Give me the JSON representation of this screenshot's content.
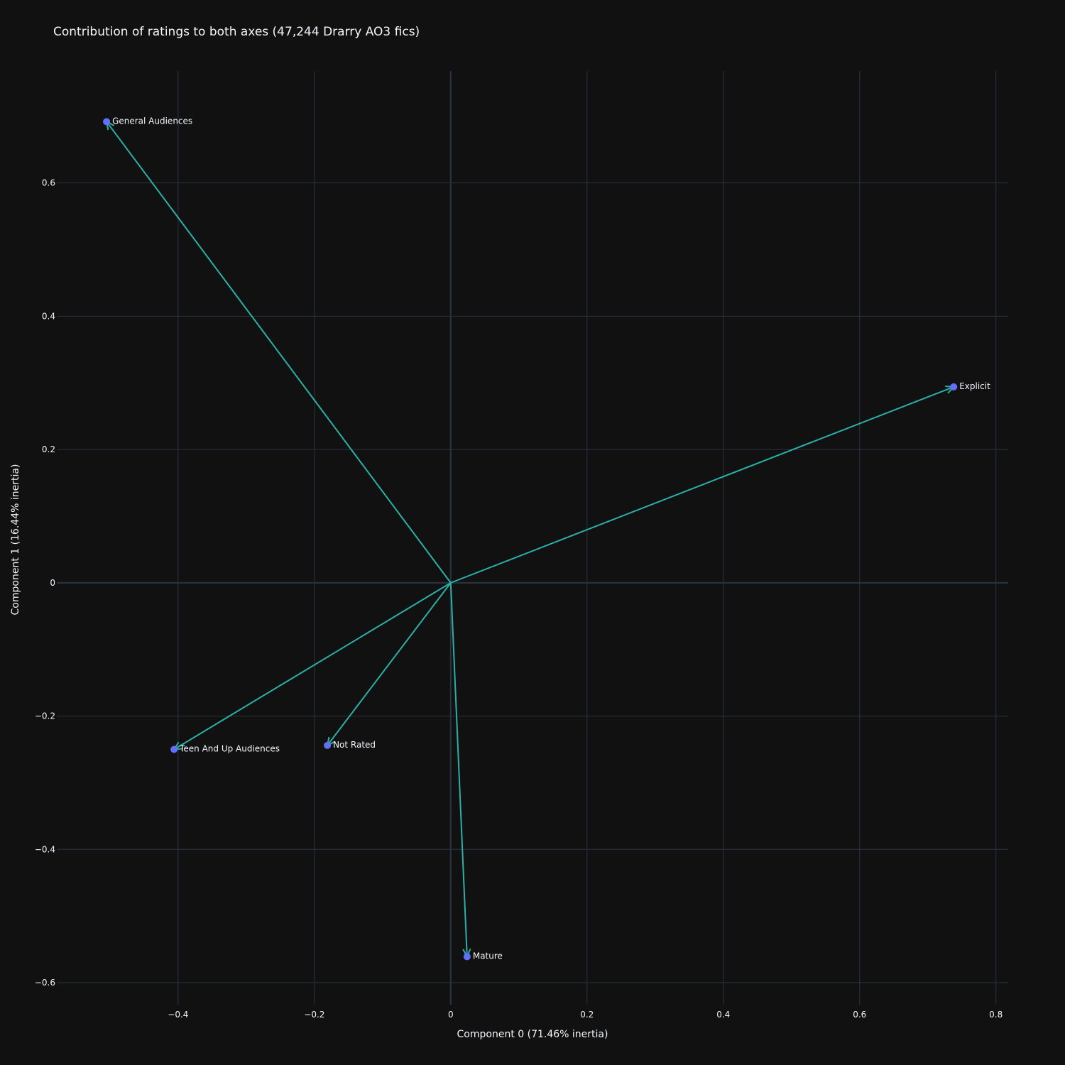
{
  "chart_data": {
    "type": "scatter",
    "title": "Contribution of ratings to both axes (47,244 Drarry AO3 fics)",
    "xlabel": "Component 0 (71.46% inertia)",
    "ylabel": "Component 1 (16.44% inertia)",
    "xlim": [
      -0.578,
      0.818
    ],
    "ylim": [
      -0.633,
      0.768
    ],
    "xticks": [
      -0.4,
      -0.2,
      0,
      0.2,
      0.4,
      0.6,
      0.8
    ],
    "xtick_labels": [
      "−0.4",
      "−0.2",
      "0",
      "0.2",
      "0.4",
      "0.6",
      "0.8"
    ],
    "yticks": [
      -0.6,
      -0.4,
      -0.2,
      0,
      0.2,
      0.4,
      0.6
    ],
    "ytick_labels": [
      "−0.6",
      "−0.4",
      "−0.2",
      "0",
      "0.2",
      "0.4",
      "0.6"
    ],
    "grid": true,
    "points": [
      {
        "label": "General Audiences",
        "x": -0.505,
        "y": 0.692
      },
      {
        "label": "Explicit",
        "x": 0.738,
        "y": 0.294
      },
      {
        "label": "Teen And Up Audiences",
        "x": -0.406,
        "y": -0.25
      },
      {
        "label": "Not Rated",
        "x": -0.181,
        "y": -0.244
      },
      {
        "label": "Mature",
        "x": 0.024,
        "y": -0.561
      }
    ],
    "arrows_from_origin": true,
    "colors": {
      "background": "#111111",
      "grid": "#283442",
      "zeroline": "#283442",
      "marker": "#636efa",
      "arrow": "#2ab0a8",
      "text": "#f2f5fa"
    }
  }
}
